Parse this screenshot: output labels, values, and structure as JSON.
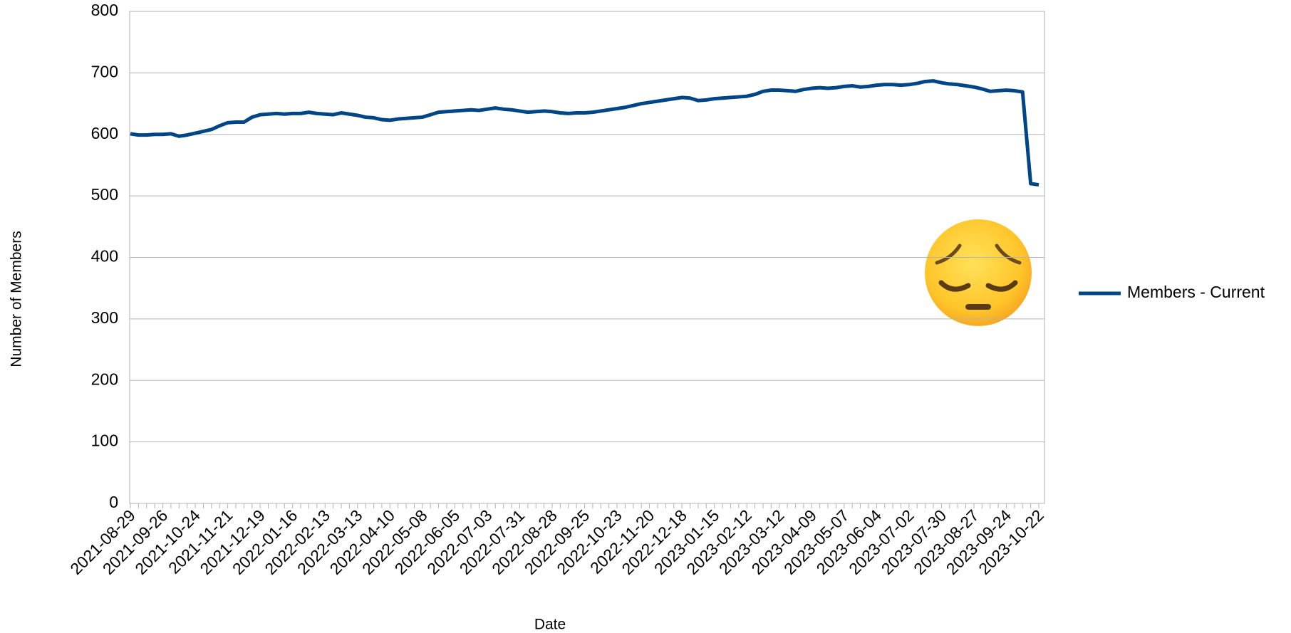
{
  "chart_data": {
    "type": "line",
    "x_label": "Date",
    "y_label": "Number of Members",
    "categories": [
      "2021-08-29",
      null,
      null,
      null,
      "2021-09-26",
      null,
      null,
      null,
      "2021-10-24",
      null,
      null,
      null,
      "2021-11-21",
      null,
      null,
      null,
      "2021-12-19",
      null,
      null,
      null,
      "2022-01-16",
      null,
      null,
      null,
      "2022-02-13",
      null,
      null,
      null,
      "2022-03-13",
      null,
      null,
      null,
      "2022-04-10",
      null,
      null,
      null,
      "2022-05-08",
      null,
      null,
      null,
      "2022-06-05",
      null,
      null,
      null,
      "2022-07-03",
      null,
      null,
      null,
      "2022-07-31",
      null,
      null,
      null,
      "2022-08-28",
      null,
      null,
      null,
      "2022-09-25",
      null,
      null,
      null,
      "2022-10-23",
      null,
      null,
      null,
      "2022-11-20",
      null,
      null,
      null,
      "2022-12-18",
      null,
      null,
      null,
      "2023-01-15",
      null,
      null,
      null,
      "2023-02-12",
      null,
      null,
      null,
      "2023-03-12",
      null,
      null,
      null,
      "2023-04-09",
      null,
      null,
      null,
      "2023-05-07",
      null,
      null,
      null,
      "2023-06-04",
      null,
      null,
      null,
      "2023-07-02",
      null,
      null,
      null,
      "2023-07-30",
      null,
      null,
      null,
      "2023-08-27",
      null,
      null,
      null,
      "2023-09-24",
      null,
      null,
      null,
      "2023-10-22"
    ],
    "series": [
      {
        "name": "Members - Current",
        "color": "#004586",
        "values": [
          601,
          599,
          599,
          600,
          600,
          601,
          597,
          599,
          602,
          605,
          608,
          614,
          619,
          620,
          620,
          628,
          632,
          633,
          634,
          633,
          634,
          634,
          636,
          634,
          633,
          632,
          635,
          633,
          631,
          628,
          627,
          624,
          623,
          625,
          626,
          627,
          628,
          632,
          636,
          637,
          638,
          639,
          640,
          639,
          641,
          643,
          641,
          640,
          638,
          636,
          637,
          638,
          637,
          635,
          634,
          635,
          635,
          636,
          638,
          640,
          642,
          644,
          647,
          650,
          652,
          654,
          656,
          658,
          660,
          659,
          655,
          656,
          658,
          659,
          660,
          661,
          662,
          665,
          670,
          672,
          672,
          671,
          670,
          673,
          675,
          676,
          675,
          676,
          678,
          679,
          677,
          678,
          680,
          681,
          681,
          680,
          681,
          683,
          686,
          687,
          684,
          682,
          681,
          679,
          677,
          674,
          670,
          671,
          672,
          671,
          669,
          520,
          518
        ]
      }
    ],
    "ylim": [
      0,
      800
    ],
    "yticks": [
      0,
      100,
      200,
      300,
      400,
      500,
      600,
      700,
      800
    ],
    "grid": true,
    "legend": "right"
  }
}
